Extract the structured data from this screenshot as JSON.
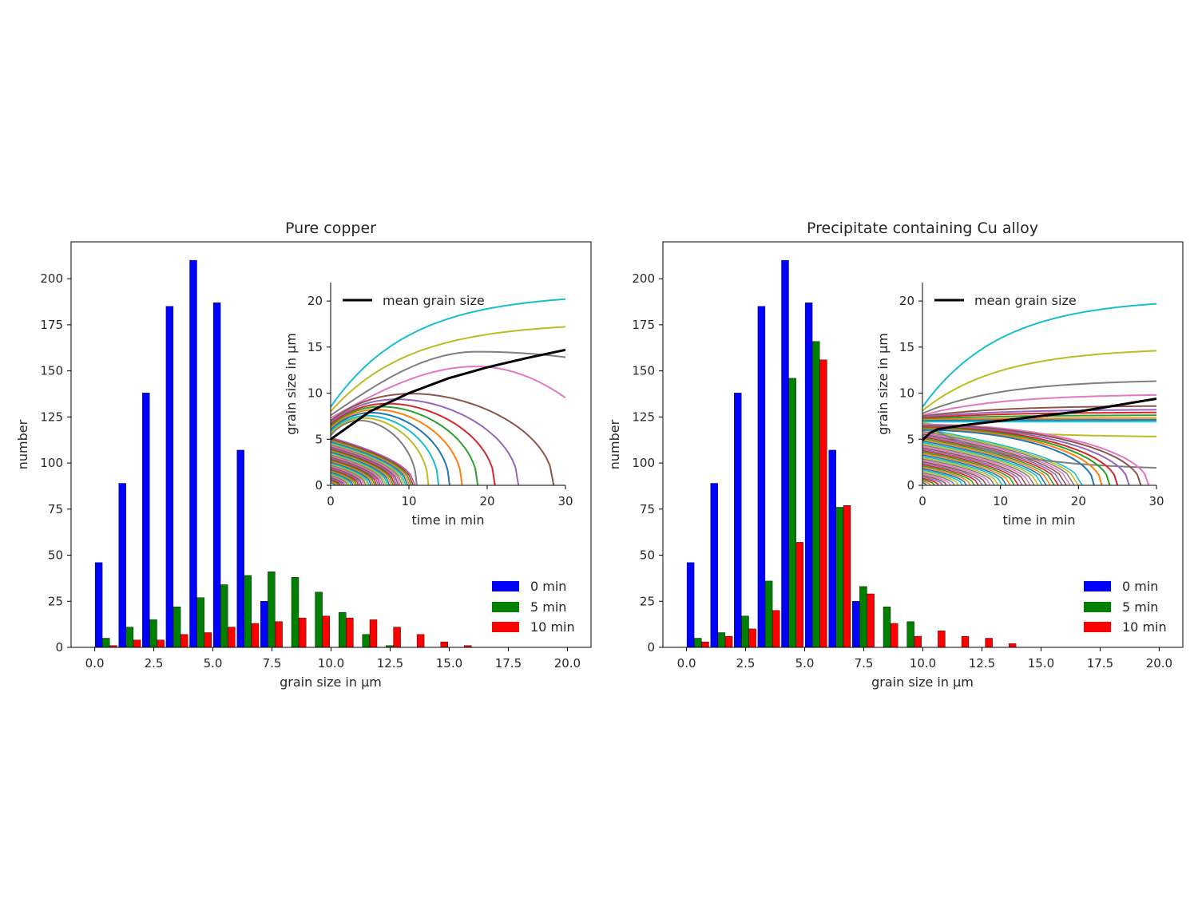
{
  "chart_data": [
    {
      "type": "bar",
      "title": "Pure copper",
      "xlabel": "grain size in µm",
      "ylabel": "number",
      "xlim": [
        -1.0,
        21.0
      ],
      "ylim": [
        0,
        220
      ],
      "x_ticks": [
        "0.0",
        "2.5",
        "5.0",
        "7.5",
        "10.0",
        "12.5",
        "15.0",
        "17.5",
        "20.0"
      ],
      "y_ticks": [
        "0",
        "25",
        "50",
        "75",
        "100",
        "125",
        "150",
        "175",
        "200"
      ],
      "legend": {
        "position": "lower-right",
        "entries": [
          "0 min",
          "5 min",
          "10 min"
        ]
      },
      "series": [
        {
          "name": "0 min",
          "color": "#0000ff",
          "x": [
            0.17,
            1.17,
            2.17,
            3.17,
            4.17,
            5.17,
            6.17,
            7.17
          ],
          "values": [
            46,
            89,
            138,
            185,
            210,
            187,
            107,
            25
          ]
        },
        {
          "name": "5 min",
          "color": "#008000",
          "x": [
            0.48,
            1.48,
            2.48,
            3.48,
            4.48,
            5.48,
            6.48,
            7.48,
            8.48,
            9.48,
            10.48,
            11.48,
            12.48
          ],
          "values": [
            5,
            11,
            15,
            22,
            27,
            34,
            39,
            41,
            38,
            30,
            19,
            7,
            1
          ]
        },
        {
          "name": "10 min",
          "color": "#ff0000",
          "x": [
            0.79,
            1.79,
            2.79,
            3.79,
            4.79,
            5.79,
            6.79,
            7.79,
            8.79,
            9.79,
            10.79,
            11.79,
            12.79,
            13.79,
            14.79,
            15.79
          ],
          "values": [
            1,
            4,
            4,
            7,
            8,
            11,
            13,
            14,
            16,
            17,
            16,
            15,
            11,
            7,
            3,
            1
          ]
        }
      ],
      "inset": {
        "type": "line",
        "xlabel": "time in min",
        "ylabel": "grain size in µm",
        "xlim": [
          0,
          30
        ],
        "ylim": [
          0,
          22
        ],
        "x_ticks": [
          "0",
          "10",
          "20",
          "30"
        ],
        "y_ticks": [
          "0",
          "5",
          "10",
          "15",
          "20"
        ],
        "legend": {
          "position": "top-left",
          "entries": [
            "mean grain size"
          ]
        },
        "mean_grain_size": {
          "x": [
            0,
            5,
            10,
            15,
            20,
            25,
            30
          ],
          "y": [
            5.0,
            8.0,
            10.0,
            11.6,
            12.8,
            13.8,
            14.7
          ]
        },
        "grain_curves": [
          {
            "initial": 8.5,
            "end": 20.2,
            "dies_at": null,
            "color": "#17becf"
          },
          {
            "initial": 8.0,
            "end": 17.2,
            "dies_at": null,
            "color": "#bcbd22"
          },
          {
            "initial": 7.6,
            "peak": 14.5,
            "end": 13.9,
            "dies_at": null,
            "color": "#7f7f7f"
          },
          {
            "initial": 7.3,
            "peak": 12.9,
            "end": 9.5,
            "dies_at": null,
            "color": "#e377c2"
          },
          {
            "initial": 7.0,
            "peak": 11.8,
            "dies_at": 28.5,
            "color": "#8c564b"
          },
          {
            "initial": 6.8,
            "peak": 11.0,
            "dies_at": 24.0,
            "color": "#9467bd"
          },
          {
            "initial": 6.6,
            "peak": 10.4,
            "dies_at": 21.0,
            "color": "#d62728"
          },
          {
            "initial": 6.4,
            "peak": 10.0,
            "dies_at": 18.8,
            "color": "#2ca02c"
          },
          {
            "initial": 6.2,
            "peak": 9.6,
            "dies_at": 16.8,
            "color": "#ff7f0e"
          },
          {
            "initial": 6.0,
            "peak": 9.2,
            "dies_at": 15.2,
            "color": "#1f77b4"
          },
          {
            "initial": 5.8,
            "peak": 8.8,
            "dies_at": 13.8,
            "color": "#17becf"
          },
          {
            "initial": 5.6,
            "peak": 8.5,
            "dies_at": 12.5,
            "color": "#bcbd22"
          },
          {
            "initial": 5.4,
            "peak": 8.2,
            "dies_at": 11.0,
            "color": "#7f7f7f"
          }
        ],
        "note": "many additional small grains shrink to zero before ~10 min"
      }
    },
    {
      "type": "bar",
      "title": "Precipitate containing Cu alloy",
      "xlabel": "grain size in µm",
      "ylabel": "number",
      "xlim": [
        -1.0,
        21.0
      ],
      "ylim": [
        0,
        220
      ],
      "x_ticks": [
        "0.0",
        "2.5",
        "5.0",
        "7.5",
        "10.0",
        "12.5",
        "15.0",
        "17.5",
        "20.0"
      ],
      "y_ticks": [
        "0",
        "25",
        "50",
        "75",
        "100",
        "125",
        "150",
        "175",
        "200"
      ],
      "legend": {
        "position": "lower-right",
        "entries": [
          "0 min",
          "5 min",
          "10 min"
        ]
      },
      "series": [
        {
          "name": "0 min",
          "color": "#0000ff",
          "x": [
            0.17,
            1.17,
            2.17,
            3.17,
            4.17,
            5.17,
            6.17,
            7.17
          ],
          "values": [
            46,
            89,
            138,
            185,
            210,
            187,
            107,
            25
          ]
        },
        {
          "name": "5 min",
          "color": "#008000",
          "x": [
            0.48,
            1.48,
            2.48,
            3.48,
            4.48,
            5.48,
            6.48,
            7.48,
            8.48,
            9.48
          ],
          "values": [
            5,
            8,
            17,
            36,
            146,
            166,
            76,
            33,
            22,
            14
          ]
        },
        {
          "name": "10 min",
          "color": "#ff0000",
          "x": [
            0.79,
            1.79,
            2.79,
            3.79,
            4.79,
            5.79,
            6.79,
            7.79,
            8.79,
            9.79,
            10.79,
            11.79,
            12.79,
            13.79
          ],
          "values": [
            3,
            6,
            10,
            20,
            57,
            156,
            77,
            29,
            13,
            6,
            9,
            6,
            5,
            2
          ]
        }
      ],
      "inset": {
        "type": "line",
        "xlabel": "time in min",
        "ylabel": "grain size in µm",
        "xlim": [
          0,
          30
        ],
        "ylim": [
          0,
          22
        ],
        "x_ticks": [
          "0",
          "10",
          "20",
          "30"
        ],
        "y_ticks": [
          "0",
          "5",
          "10",
          "15",
          "20"
        ],
        "legend": {
          "position": "top-left",
          "entries": [
            "mean grain size"
          ]
        },
        "mean_grain_size": {
          "x": [
            0,
            1,
            2,
            5,
            10,
            15,
            20,
            25,
            30
          ],
          "y": [
            4.9,
            5.7,
            6.1,
            6.5,
            7.0,
            7.5,
            8.0,
            8.7,
            9.4
          ]
        },
        "grain_curves": [
          {
            "initial": 8.5,
            "end": 19.7,
            "dies_at": null,
            "color": "#17becf"
          },
          {
            "initial": 8.1,
            "end": 14.6,
            "dies_at": null,
            "color": "#bcbd22"
          },
          {
            "initial": 7.8,
            "end": 11.3,
            "dies_at": null,
            "color": "#7f7f7f"
          },
          {
            "initial": 7.6,
            "end": 9.8,
            "dies_at": null,
            "color": "#e377c2"
          },
          {
            "initial": 7.5,
            "end": 8.6,
            "dies_at": null,
            "color": "#8c564b"
          },
          {
            "initial": 7.4,
            "end": 8.2,
            "dies_at": null,
            "color": "#9467bd"
          },
          {
            "initial": 7.3,
            "end": 7.9,
            "dies_at": null,
            "color": "#d62728"
          },
          {
            "initial": 7.2,
            "end": 7.6,
            "dies_at": null,
            "color": "#2ca02c"
          },
          {
            "initial": 7.1,
            "end": 7.3,
            "dies_at": null,
            "color": "#ff7f0e"
          },
          {
            "initial": 7.0,
            "end": 7.1,
            "dies_at": null,
            "color": "#1f77b4"
          },
          {
            "initial": 6.9,
            "end": 6.9,
            "dies_at": null,
            "color": "#17becf"
          },
          {
            "initial": 6.8,
            "end": 5.3,
            "dies_at": null,
            "color": "#bcbd22"
          },
          {
            "initial": 6.7,
            "end": 1.9,
            "dies_at": null,
            "color": "#7f7f7f"
          },
          {
            "initial": 6.6,
            "dies_at": 29.0,
            "color": "#e377c2"
          },
          {
            "initial": 6.5,
            "dies_at": 28.0,
            "color": "#8c564b"
          },
          {
            "initial": 6.4,
            "dies_at": 26.5,
            "color": "#9467bd"
          },
          {
            "initial": 6.3,
            "dies_at": 25.0,
            "color": "#d62728"
          },
          {
            "initial": 6.2,
            "dies_at": 24.0,
            "color": "#2ca02c"
          },
          {
            "initial": 6.1,
            "dies_at": 23.0,
            "color": "#ff7f0e"
          },
          {
            "initial": 6.0,
            "dies_at": 22.0,
            "color": "#1f77b4"
          }
        ],
        "note": "many additional small grains shrink to zero before ~20 min"
      }
    }
  ]
}
